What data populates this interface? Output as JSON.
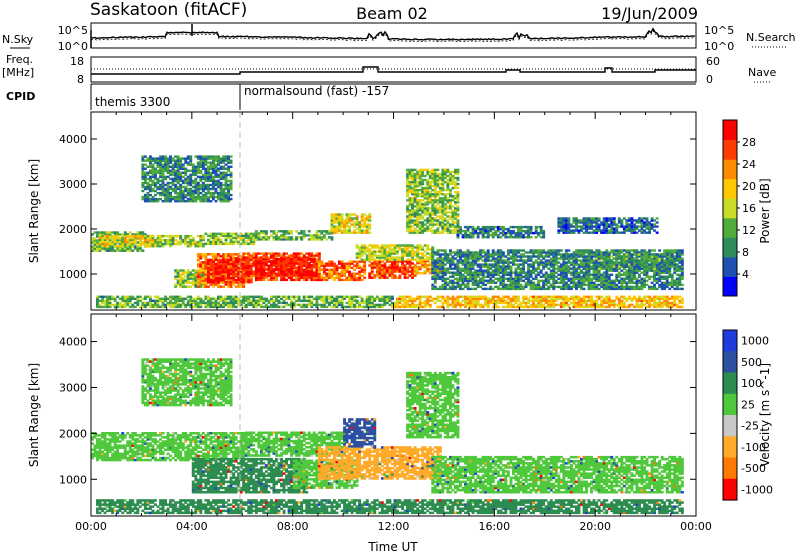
{
  "header": {
    "station": "Saskatoon (fitACF)",
    "beam": "Beam 02",
    "date": "19/Jun/2009"
  },
  "strips": {
    "nsky_label": "N.Sky",
    "nsky_ticks": [
      "10^5",
      "10^0"
    ],
    "nsearch_label": "N.Search",
    "freq_label_1": "Freq.",
    "freq_label_2": "[MHz]",
    "freq_ticks": [
      "18",
      "8"
    ],
    "nave_label": "Nave",
    "nave_ticks": [
      "60",
      "0"
    ],
    "cpid_label": "CPID",
    "programs": [
      {
        "name": "themis 3300",
        "start_hour": 0
      },
      {
        "name": "normalsound (fast) -157",
        "start_hour": 6
      }
    ]
  },
  "chart_data": [
    {
      "type": "heatmap",
      "id": "power",
      "ylabel": "Slant Range [km]",
      "xlabel": "",
      "xlim": [
        0,
        24
      ],
      "ylim": [
        200,
        4600
      ],
      "y_ticks": [
        "1000",
        "2000",
        "3000",
        "4000"
      ],
      "y_tick_values": [
        1000,
        2000,
        3000,
        4000
      ],
      "colorbar": {
        "label": "Power [dB]",
        "ticks": [
          "4",
          "8",
          "12",
          "16",
          "20",
          "24",
          "28"
        ],
        "tick_values": [
          4,
          8,
          12,
          16,
          20,
          24,
          28
        ],
        "range": [
          0,
          32
        ],
        "colors": [
          "#0000ff",
          "#1e50b4",
          "#2d8c5a",
          "#50aa3c",
          "#c8dc28",
          "#ffc800",
          "#ff8c00",
          "#ff3c00",
          "#ff0000"
        ]
      },
      "regions": [
        {
          "t0": 0.0,
          "t1": 2.2,
          "r0": 1500,
          "r1": 1950,
          "v": 12
        },
        {
          "t0": 0.3,
          "t1": 2.5,
          "r0": 1600,
          "r1": 1850,
          "v": 18
        },
        {
          "t0": 2.2,
          "t1": 4.5,
          "r0": 1600,
          "r1": 1850,
          "v": 15
        },
        {
          "t0": 4.5,
          "t1": 6.5,
          "r0": 1650,
          "r1": 1900,
          "v": 14
        },
        {
          "t0": 6.5,
          "t1": 9.5,
          "r0": 1750,
          "r1": 1950,
          "v": 12
        },
        {
          "t0": 9.5,
          "t1": 11.0,
          "r0": 1900,
          "r1": 2350,
          "v": 18
        },
        {
          "t0": 3.3,
          "t1": 4.5,
          "r0": 700,
          "r1": 1100,
          "v": 14
        },
        {
          "t0": 4.2,
          "t1": 6.0,
          "r0": 700,
          "r1": 1450,
          "v": 24
        },
        {
          "t0": 4.6,
          "t1": 6.3,
          "r0": 800,
          "r1": 1300,
          "v": 29
        },
        {
          "t0": 6.0,
          "t1": 9.0,
          "r0": 850,
          "r1": 1450,
          "v": 28
        },
        {
          "t0": 6.5,
          "t1": 8.8,
          "r0": 950,
          "r1": 1350,
          "v": 30
        },
        {
          "t0": 9.0,
          "t1": 10.8,
          "r0": 850,
          "r1": 1300,
          "v": 25
        },
        {
          "t0": 11.0,
          "t1": 12.8,
          "r0": 900,
          "r1": 1300,
          "v": 27
        },
        {
          "t0": 12.8,
          "t1": 13.8,
          "r0": 1000,
          "r1": 1300,
          "v": 22
        },
        {
          "t0": 10.5,
          "t1": 13.5,
          "r0": 1300,
          "r1": 1650,
          "v": 16
        },
        {
          "t0": 13.5,
          "t1": 23.5,
          "r0": 650,
          "r1": 1550,
          "v": 9
        },
        {
          "t0": 14.5,
          "t1": 18.0,
          "r0": 1800,
          "r1": 2050,
          "v": 8
        },
        {
          "t0": 19.5,
          "t1": 23.0,
          "r0": 1100,
          "r1": 1450,
          "v": 10
        },
        {
          "t0": 18.5,
          "t1": 22.5,
          "r0": 1900,
          "r1": 2250,
          "v": 7
        },
        {
          "t0": 12.5,
          "t1": 14.5,
          "r0": 1900,
          "r1": 3300,
          "v": 14
        },
        {
          "t0": 2.0,
          "t1": 5.5,
          "r0": 2600,
          "r1": 3600,
          "v": 9
        },
        {
          "t0": 0.2,
          "t1": 12.0,
          "r0": 250,
          "r1": 520,
          "v": 12
        },
        {
          "t0": 12.0,
          "t1": 23.5,
          "r0": 250,
          "r1": 480,
          "v": 20
        }
      ]
    },
    {
      "type": "heatmap",
      "id": "velocity",
      "ylabel": "Slant Range [km]",
      "xlabel": "Time UT",
      "xlim": [
        0,
        24
      ],
      "ylim": [
        200,
        4600
      ],
      "x_ticks": [
        "00:00",
        "04:00",
        "08:00",
        "12:00",
        "16:00",
        "20:00",
        "00:00"
      ],
      "x_tick_values": [
        0,
        4,
        8,
        12,
        16,
        20,
        24
      ],
      "y_ticks": [
        "1000",
        "2000",
        "3000",
        "4000"
      ],
      "y_tick_values": [
        1000,
        2000,
        3000,
        4000
      ],
      "colorbar": {
        "label": "Velocity [m s^-1]",
        "ticks": [
          "1000",
          "500",
          "100",
          "25",
          "-25",
          "-100",
          "-500",
          "-1000"
        ],
        "colors": [
          "#1e3cdc",
          "#2d50a0",
          "#2d8c50",
          "#50c83c",
          "#c8c8c8",
          "#ffaa28",
          "#ff7800",
          "#ff0000"
        ]
      },
      "regions": [
        {
          "t0": 0.0,
          "t1": 6.0,
          "r0": 1400,
          "r1": 2000,
          "v": 25
        },
        {
          "t0": 6.0,
          "t1": 10.0,
          "r0": 1500,
          "r1": 2000,
          "v": 25
        },
        {
          "t0": 4.0,
          "t1": 8.5,
          "r0": 700,
          "r1": 1450,
          "v": 100
        },
        {
          "t0": 8.0,
          "t1": 10.5,
          "r0": 800,
          "r1": 1400,
          "v": 25
        },
        {
          "t0": 9.0,
          "t1": 13.8,
          "r0": 1000,
          "r1": 1700,
          "v": -100
        },
        {
          "t0": 10.0,
          "t1": 11.2,
          "r0": 1700,
          "r1": 2300,
          "v": 500
        },
        {
          "t0": 13.5,
          "t1": 23.5,
          "r0": 700,
          "r1": 1500,
          "v": 25
        },
        {
          "t0": 12.5,
          "t1": 14.5,
          "r0": 1900,
          "r1": 3300,
          "v": 25
        },
        {
          "t0": 0.2,
          "t1": 23.5,
          "r0": 250,
          "r1": 550,
          "v": 100
        },
        {
          "t0": 2.0,
          "t1": 5.5,
          "r0": 2600,
          "r1": 3600,
          "v": 25
        }
      ]
    }
  ]
}
